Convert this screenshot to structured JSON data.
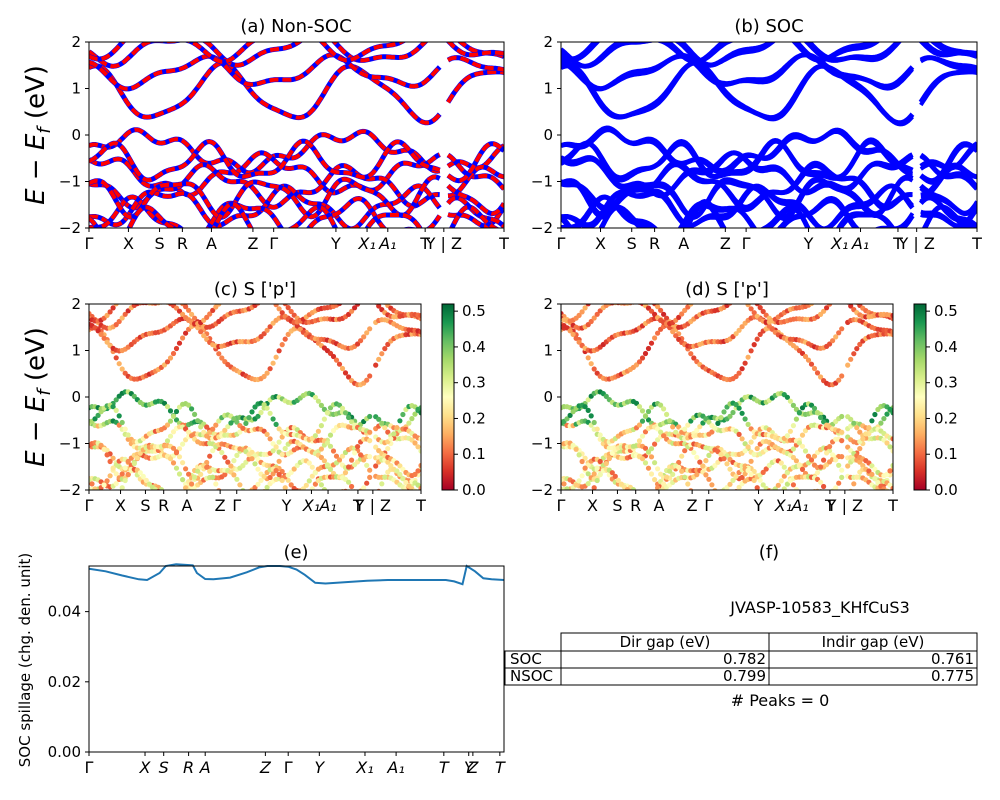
{
  "figure": {
    "ylabel_main": "E − E",
    "ylabel_sub": "f",
    "ylabel_unit": " (eV)"
  },
  "chart_data": [
    {
      "id": "a",
      "type": "line",
      "title": "(a) Non-SOC",
      "ylim": [
        -2,
        2
      ],
      "yticks": [
        "2",
        "1",
        "0",
        "−1",
        "−2"
      ],
      "xticks": [
        {
          "label": "Γ",
          "x": 0.0
        },
        {
          "label": "X",
          "x": 0.095
        },
        {
          "label": "S",
          "x": 0.17
        },
        {
          "label": "R",
          "x": 0.225
        },
        {
          "label": "A",
          "x": 0.295
        },
        {
          "label": "Z",
          "x": 0.395
        },
        {
          "label": "Γ",
          "x": 0.445
        },
        {
          "label": "Y",
          "x": 0.595
        },
        {
          "label": "X₁",
          "x": 0.67
        },
        {
          "label": "A₁",
          "x": 0.72
        },
        {
          "label": "T",
          "x": 0.81
        },
        {
          "label": "Y | Z",
          "x": 0.855
        },
        {
          "label": "T",
          "x": 1.0
        }
      ],
      "series_colors": [
        "#0000ff",
        "#ff0000"
      ],
      "dashed_overlay": true,
      "colorbar": false
    },
    {
      "id": "b",
      "type": "line",
      "title": "(b) SOC",
      "ylim": [
        -2,
        2
      ],
      "yticks": [
        "2",
        "1",
        "0",
        "−1",
        "−2"
      ],
      "xticks": [
        {
          "label": "Γ",
          "x": 0.0
        },
        {
          "label": "X",
          "x": 0.095
        },
        {
          "label": "S",
          "x": 0.17
        },
        {
          "label": "R",
          "x": 0.225
        },
        {
          "label": "A",
          "x": 0.295
        },
        {
          "label": "Z",
          "x": 0.395
        },
        {
          "label": "Γ",
          "x": 0.445
        },
        {
          "label": "Y",
          "x": 0.595
        },
        {
          "label": "X₁",
          "x": 0.67
        },
        {
          "label": "A₁",
          "x": 0.72
        },
        {
          "label": "T",
          "x": 0.81
        },
        {
          "label": "Y | Z",
          "x": 0.855
        },
        {
          "label": "T",
          "x": 1.0
        }
      ],
      "series_colors": [
        "#0000ff"
      ],
      "dashed_overlay": false,
      "colorbar": false
    },
    {
      "id": "c",
      "type": "scatter",
      "title": "(c)  S ['p']",
      "ylim": [
        -2,
        2
      ],
      "yticks": [
        "2",
        "1",
        "0",
        "−1",
        "−2"
      ],
      "xticks": [
        {
          "label": "Γ",
          "x": 0.0
        },
        {
          "label": "X",
          "x": 0.095
        },
        {
          "label": "S",
          "x": 0.17
        },
        {
          "label": "R",
          "x": 0.225
        },
        {
          "label": "A",
          "x": 0.295
        },
        {
          "label": "Z",
          "x": 0.395
        },
        {
          "label": "Γ",
          "x": 0.445
        },
        {
          "label": "Y",
          "x": 0.595
        },
        {
          "label": "X₁",
          "x": 0.67
        },
        {
          "label": "A₁",
          "x": 0.72
        },
        {
          "label": "T",
          "x": 0.81
        },
        {
          "label": "Y | Z",
          "x": 0.855
        },
        {
          "label": "T",
          "x": 1.0
        }
      ],
      "colorbar": true,
      "colorbar_ticks": [
        "0.5",
        "0.4",
        "0.3",
        "0.2",
        "0.1",
        "0.0"
      ],
      "colorbar_range": [
        0.0,
        0.52
      ],
      "colormap": "RdYlGn"
    },
    {
      "id": "d",
      "type": "scatter",
      "title": "(d) S ['p']",
      "ylim": [
        -2,
        2
      ],
      "yticks": [
        "2",
        "1",
        "0",
        "−1",
        "−2"
      ],
      "xticks": [
        {
          "label": "Γ",
          "x": 0.0
        },
        {
          "label": "X",
          "x": 0.095
        },
        {
          "label": "S",
          "x": 0.17
        },
        {
          "label": "R",
          "x": 0.225
        },
        {
          "label": "A",
          "x": 0.295
        },
        {
          "label": "Z",
          "x": 0.395
        },
        {
          "label": "Γ",
          "x": 0.445
        },
        {
          "label": "Y",
          "x": 0.595
        },
        {
          "label": "X₁",
          "x": 0.67
        },
        {
          "label": "A₁",
          "x": 0.72
        },
        {
          "label": "T",
          "x": 0.81
        },
        {
          "label": "Y | Z",
          "x": 0.855
        },
        {
          "label": "T",
          "x": 1.0
        }
      ],
      "colorbar": true,
      "colorbar_ticks": [
        "0.5",
        "0.4",
        "0.3",
        "0.2",
        "0.1",
        "0.0"
      ],
      "colorbar_range": [
        0.0,
        0.52
      ],
      "colormap": "RdYlGn"
    },
    {
      "id": "e",
      "type": "line",
      "title": "(e)",
      "ylabel": "SOC spillage (chg. den. unit)",
      "ylim": [
        0,
        0.053
      ],
      "yticks": [
        {
          "label": "0.04",
          "y": 0.04
        },
        {
          "label": "0.02",
          "y": 0.02
        },
        {
          "label": "0.00",
          "y": 0.0
        }
      ],
      "xticks": [
        {
          "label": "Γ",
          "x": 0.0
        },
        {
          "label": "X",
          "x": 0.135
        },
        {
          "label": "S",
          "x": 0.18
        },
        {
          "label": "R",
          "x": 0.24
        },
        {
          "label": "A",
          "x": 0.28
        },
        {
          "label": "Z",
          "x": 0.425
        },
        {
          "label": "Γ",
          "x": 0.48
        },
        {
          "label": "Y",
          "x": 0.555
        },
        {
          "label": "X₁",
          "x": 0.665
        },
        {
          "label": "A₁",
          "x": 0.74
        },
        {
          "label": "T",
          "x": 0.855
        },
        {
          "label": "Y",
          "x": 0.915
        },
        {
          "label": "Z",
          "x": 0.925
        },
        {
          "label": "T",
          "x": 0.99
        }
      ],
      "series": [
        {
          "color": "#1f77b4",
          "points": [
            [
              0.0,
              0.0522
            ],
            [
              0.04,
              0.0515
            ],
            [
              0.08,
              0.0503
            ],
            [
              0.12,
              0.0492
            ],
            [
              0.14,
              0.049
            ],
            [
              0.17,
              0.051
            ],
            [
              0.185,
              0.053
            ],
            [
              0.21,
              0.0535
            ],
            [
              0.25,
              0.0532
            ],
            [
              0.26,
              0.051
            ],
            [
              0.28,
              0.0493
            ],
            [
              0.3,
              0.0492
            ],
            [
              0.34,
              0.0497
            ],
            [
              0.38,
              0.0512
            ],
            [
              0.41,
              0.0526
            ],
            [
              0.43,
              0.053
            ],
            [
              0.46,
              0.053
            ],
            [
              0.48,
              0.0528
            ],
            [
              0.5,
              0.052
            ],
            [
              0.52,
              0.0505
            ],
            [
              0.545,
              0.0482
            ],
            [
              0.57,
              0.048
            ],
            [
              0.62,
              0.0484
            ],
            [
              0.67,
              0.0488
            ],
            [
              0.72,
              0.049
            ],
            [
              0.8,
              0.049
            ],
            [
              0.86,
              0.049
            ],
            [
              0.88,
              0.0486
            ],
            [
              0.9,
              0.0478
            ],
            [
              0.91,
              0.053
            ],
            [
              0.93,
              0.0515
            ],
            [
              0.95,
              0.0495
            ],
            [
              0.97,
              0.0492
            ],
            [
              1.0,
              0.049
            ]
          ]
        }
      ]
    }
  ],
  "panel_f": {
    "title": "(f)",
    "subtitle": "JVASP-10583_KHfCuS3",
    "table": {
      "columns": [
        "Dir gap (eV)",
        "Indir gap (eV)"
      ],
      "rows": [
        {
          "label": "SOC",
          "values": [
            "0.782",
            "0.761"
          ]
        },
        {
          "label": "NSOC",
          "values": [
            "0.799",
            "0.775"
          ]
        }
      ]
    },
    "peaks_text": "# Peaks = 0"
  }
}
